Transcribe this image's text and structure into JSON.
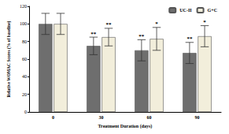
{
  "chart_data": {
    "type": "bar",
    "x_label": "Treatment Duration (days)",
    "y_label": "Relative WOMAC Scores (% of baseline)",
    "categories": [
      "0",
      "30",
      "60",
      "90"
    ],
    "series": [
      {
        "name": "UC-II",
        "color": "#6e6e6e",
        "values": [
          100,
          75,
          70,
          67
        ],
        "errors": [
          12,
          10,
          12,
          12
        ],
        "annotations": [
          null,
          "**",
          "**",
          "**"
        ]
      },
      {
        "name": "G+C",
        "color": "#f2eedb",
        "values": [
          100,
          85,
          83,
          86
        ],
        "errors": [
          12,
          10,
          13,
          12
        ],
        "annotations": [
          null,
          "**",
          "*",
          "*"
        ]
      }
    ],
    "ylim": [
      0,
      120
    ],
    "yticks": [
      0,
      20,
      40,
      60,
      80,
      100,
      120
    ],
    "grid": false,
    "legend": "upper right"
  }
}
